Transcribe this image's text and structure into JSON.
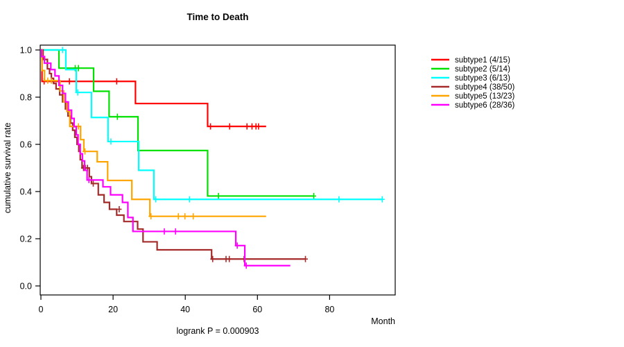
{
  "chart_data": {
    "type": "line",
    "subtype": "kaplan-meier-step",
    "title": "Time to Death",
    "xlabel": "Month",
    "ylabel": "cumulative survival rate",
    "footer": "logrank P = 0.000903",
    "xlim": [
      0,
      98
    ],
    "ylim": [
      0,
      1
    ],
    "x_ticks": [
      0,
      20,
      40,
      60,
      80
    ],
    "y_ticks": [
      0.0,
      0.2,
      0.4,
      0.6,
      0.8,
      1.0
    ],
    "grid": false,
    "legend_position": "right-outside",
    "series": [
      {
        "name": "subtype1 (4/15)",
        "color": "#ff0000",
        "steps": [
          [
            0,
            1
          ],
          [
            0.3,
            0.867
          ],
          [
            26.2,
            0.773
          ],
          [
            46.2,
            0.676
          ]
        ],
        "end": 62.4,
        "censors": [
          [
            0.9,
            0.867
          ],
          [
            7.9,
            0.867
          ],
          [
            21,
            0.867
          ],
          [
            47,
            0.676
          ],
          [
            52.3,
            0.676
          ],
          [
            57.1,
            0.676
          ],
          [
            58.5,
            0.676
          ],
          [
            59.6,
            0.676
          ],
          [
            60.3,
            0.676
          ]
        ]
      },
      {
        "name": "subtype2 (5/14)",
        "color": "#00e100",
        "steps": [
          [
            0,
            1
          ],
          [
            5,
            0.923
          ],
          [
            14.6,
            0.825
          ],
          [
            18.9,
            0.717
          ],
          [
            26.9,
            0.574
          ],
          [
            46.2,
            0.381
          ]
        ],
        "end": 75.6,
        "censors": [
          [
            9.5,
            0.923
          ],
          [
            10.4,
            0.923
          ],
          [
            21.2,
            0.717
          ],
          [
            49.2,
            0.381
          ],
          [
            75.6,
            0.381
          ]
        ]
      },
      {
        "name": "subtype3 (6/13)",
        "color": "#00ffff",
        "steps": [
          [
            0,
            1
          ],
          [
            6.9,
            0.917
          ],
          [
            9.8,
            0.82
          ],
          [
            14,
            0.714
          ],
          [
            18.6,
            0.612
          ],
          [
            27.1,
            0.49
          ],
          [
            31.3,
            0.367
          ]
        ],
        "end": 94.6,
        "censors": [
          [
            6,
            1
          ],
          [
            10.2,
            0.82
          ],
          [
            19.4,
            0.612
          ],
          [
            31.8,
            0.367
          ],
          [
            41.2,
            0.367
          ],
          [
            82.6,
            0.367
          ],
          [
            94.6,
            0.367
          ]
        ]
      },
      {
        "name": "subtype4 (38/50)",
        "color": "#a52a2a",
        "steps": [
          [
            0,
            1
          ],
          [
            0.6,
            0.96
          ],
          [
            1.8,
            0.92
          ],
          [
            2.4,
            0.9
          ],
          [
            2.9,
            0.88
          ],
          [
            3.5,
            0.858
          ],
          [
            4.2,
            0.835
          ],
          [
            5.2,
            0.81
          ],
          [
            6,
            0.78
          ],
          [
            6.8,
            0.75
          ],
          [
            7.5,
            0.72
          ],
          [
            8.2,
            0.69
          ],
          [
            8.8,
            0.66
          ],
          [
            9.4,
            0.63
          ],
          [
            10,
            0.6
          ],
          [
            10.5,
            0.57
          ],
          [
            10.9,
            0.535
          ],
          [
            11.4,
            0.5
          ],
          [
            13.4,
            0.463
          ],
          [
            14,
            0.434
          ],
          [
            15.9,
            0.386
          ],
          [
            17.5,
            0.354
          ],
          [
            19,
            0.325
          ],
          [
            21,
            0.3
          ],
          [
            23,
            0.273
          ],
          [
            26.8,
            0.241
          ],
          [
            28.3,
            0.187
          ],
          [
            32.2,
            0.153
          ],
          [
            47.3,
            0.114
          ]
        ],
        "end": 73.3,
        "censors": [
          [
            11.8,
            0.5
          ],
          [
            12.3,
            0.5
          ],
          [
            12.9,
            0.5
          ],
          [
            14.5,
            0.434
          ],
          [
            21.7,
            0.325
          ],
          [
            47.6,
            0.114
          ],
          [
            51.3,
            0.114
          ],
          [
            52.2,
            0.114
          ],
          [
            56.3,
            0.114
          ],
          [
            73.3,
            0.114
          ]
        ]
      },
      {
        "name": "subtype5 (13/23)",
        "color": "#ffa500",
        "steps": [
          [
            0,
            1
          ],
          [
            0.3,
            0.913
          ],
          [
            1,
            0.87
          ],
          [
            5.3,
            0.826
          ],
          [
            6.3,
            0.78
          ],
          [
            7.2,
            0.74
          ],
          [
            8,
            0.676
          ],
          [
            11,
            0.62
          ],
          [
            11.9,
            0.57
          ],
          [
            15.6,
            0.526
          ],
          [
            18.5,
            0.447
          ],
          [
            25.2,
            0.367
          ],
          [
            30.2,
            0.295
          ]
        ],
        "end": 62.4,
        "censors": [
          [
            1.9,
            0.87
          ],
          [
            2.9,
            0.87
          ],
          [
            10.4,
            0.676
          ],
          [
            12.2,
            0.57
          ],
          [
            30.5,
            0.295
          ],
          [
            38.1,
            0.295
          ],
          [
            39.9,
            0.295
          ],
          [
            42.2,
            0.295
          ]
        ]
      },
      {
        "name": "subtype6 (28/36)",
        "color": "#ff00ff",
        "steps": [
          [
            0,
            1
          ],
          [
            0.2,
            0.972
          ],
          [
            1,
            0.944
          ],
          [
            2.75,
            0.917
          ],
          [
            3.9,
            0.89
          ],
          [
            5,
            0.85
          ],
          [
            6,
            0.816
          ],
          [
            6.8,
            0.78
          ],
          [
            7.6,
            0.745
          ],
          [
            8.5,
            0.71
          ],
          [
            9.2,
            0.675
          ],
          [
            9.8,
            0.64
          ],
          [
            10.3,
            0.6
          ],
          [
            10.9,
            0.56
          ],
          [
            11.5,
            0.53
          ],
          [
            12.1,
            0.49
          ],
          [
            12.8,
            0.449
          ],
          [
            17.2,
            0.42
          ],
          [
            19.3,
            0.386
          ],
          [
            22.6,
            0.354
          ],
          [
            24.1,
            0.29
          ],
          [
            25.5,
            0.231
          ],
          [
            54,
            0.171
          ],
          [
            56.5,
            0.086
          ]
        ],
        "end": 69.1,
        "censors": [
          [
            13.3,
            0.449
          ],
          [
            34.2,
            0.231
          ],
          [
            37.3,
            0.231
          ],
          [
            54.4,
            0.171
          ],
          [
            56.9,
            0.086
          ]
        ]
      }
    ]
  }
}
